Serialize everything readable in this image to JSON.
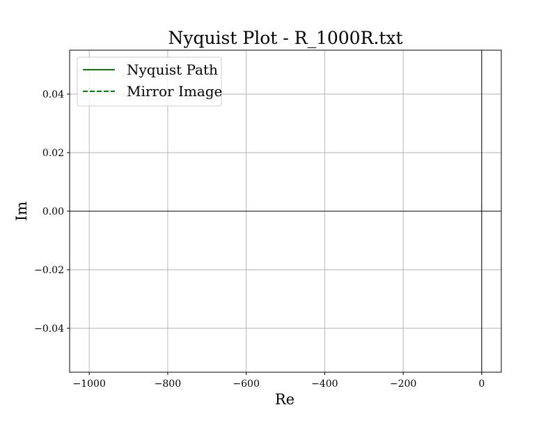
{
  "chart_data": {
    "type": "line",
    "title": "Nyquist Plot - R_1000R.txt",
    "xlabel": "Re",
    "ylabel": "Im",
    "xlim": [
      -1050,
      50
    ],
    "ylim": [
      -0.055,
      0.055
    ],
    "x_ticks": [
      -1000,
      -800,
      -600,
      -400,
      -200,
      0
    ],
    "x_tick_labels": [
      "−1000",
      "−800",
      "−600",
      "−400",
      "−200",
      "0"
    ],
    "y_ticks": [
      -0.04,
      -0.02,
      0.0,
      0.02,
      0.04
    ],
    "y_tick_labels": [
      "−0.04",
      "−0.02",
      "0.00",
      "0.02",
      "0.04"
    ],
    "grid": true,
    "reference_lines": {
      "x": 0,
      "y": 0
    },
    "legend_position": "top-left",
    "series": [
      {
        "name": "Nyquist Path",
        "line_style": "solid",
        "color": "#008000",
        "x": [],
        "y": []
      },
      {
        "name": "Mirror Image",
        "line_style": "dashed",
        "color": "#008000",
        "x": [],
        "y": []
      }
    ]
  },
  "colors": {
    "grid": "#b0b0b0",
    "axes": "#000000",
    "series": "#008000",
    "legend_border": "#cccccc"
  }
}
